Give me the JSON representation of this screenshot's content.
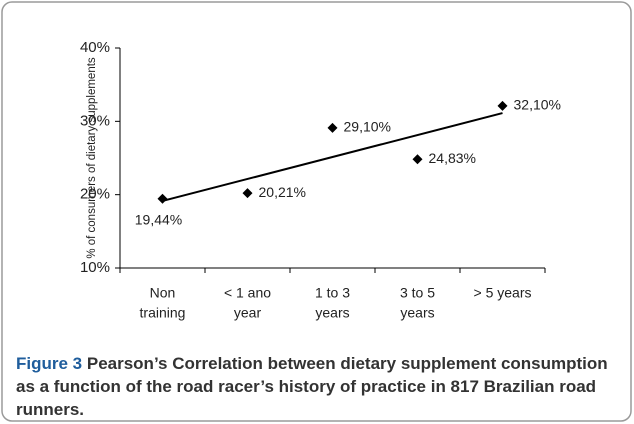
{
  "chart_data": {
    "type": "line",
    "ylabel": "% of consumers of dietary supplements",
    "categories": [
      [
        "Non",
        "training"
      ],
      [
        "< 1 ano",
        "year"
      ],
      [
        "1 to 3",
        "years"
      ],
      [
        "3 to 5",
        "years"
      ],
      [
        "> 5 years"
      ]
    ],
    "values": [
      19.44,
      20.21,
      29.1,
      24.83,
      32.1
    ],
    "value_labels": [
      "19,44%",
      "20,21%",
      "29,10%",
      "24,83%",
      "32,10%"
    ],
    "color": "#000000",
    "marker": "diamond",
    "trendline": "linear",
    "ylim": [
      10,
      40
    ],
    "yticks": [
      {
        "value": 10,
        "label": "10%"
      },
      {
        "value": 20,
        "label": "20%"
      },
      {
        "value": 30,
        "label": "30%"
      },
      {
        "value": 40,
        "label": "40%"
      }
    ],
    "grid": false
  },
  "caption": {
    "label": "Figure 3",
    "text": "Pearson’s Correlation between dietary supplement consumption as a function of the road racer’s history of practice in 817 Brazilian road runners."
  }
}
